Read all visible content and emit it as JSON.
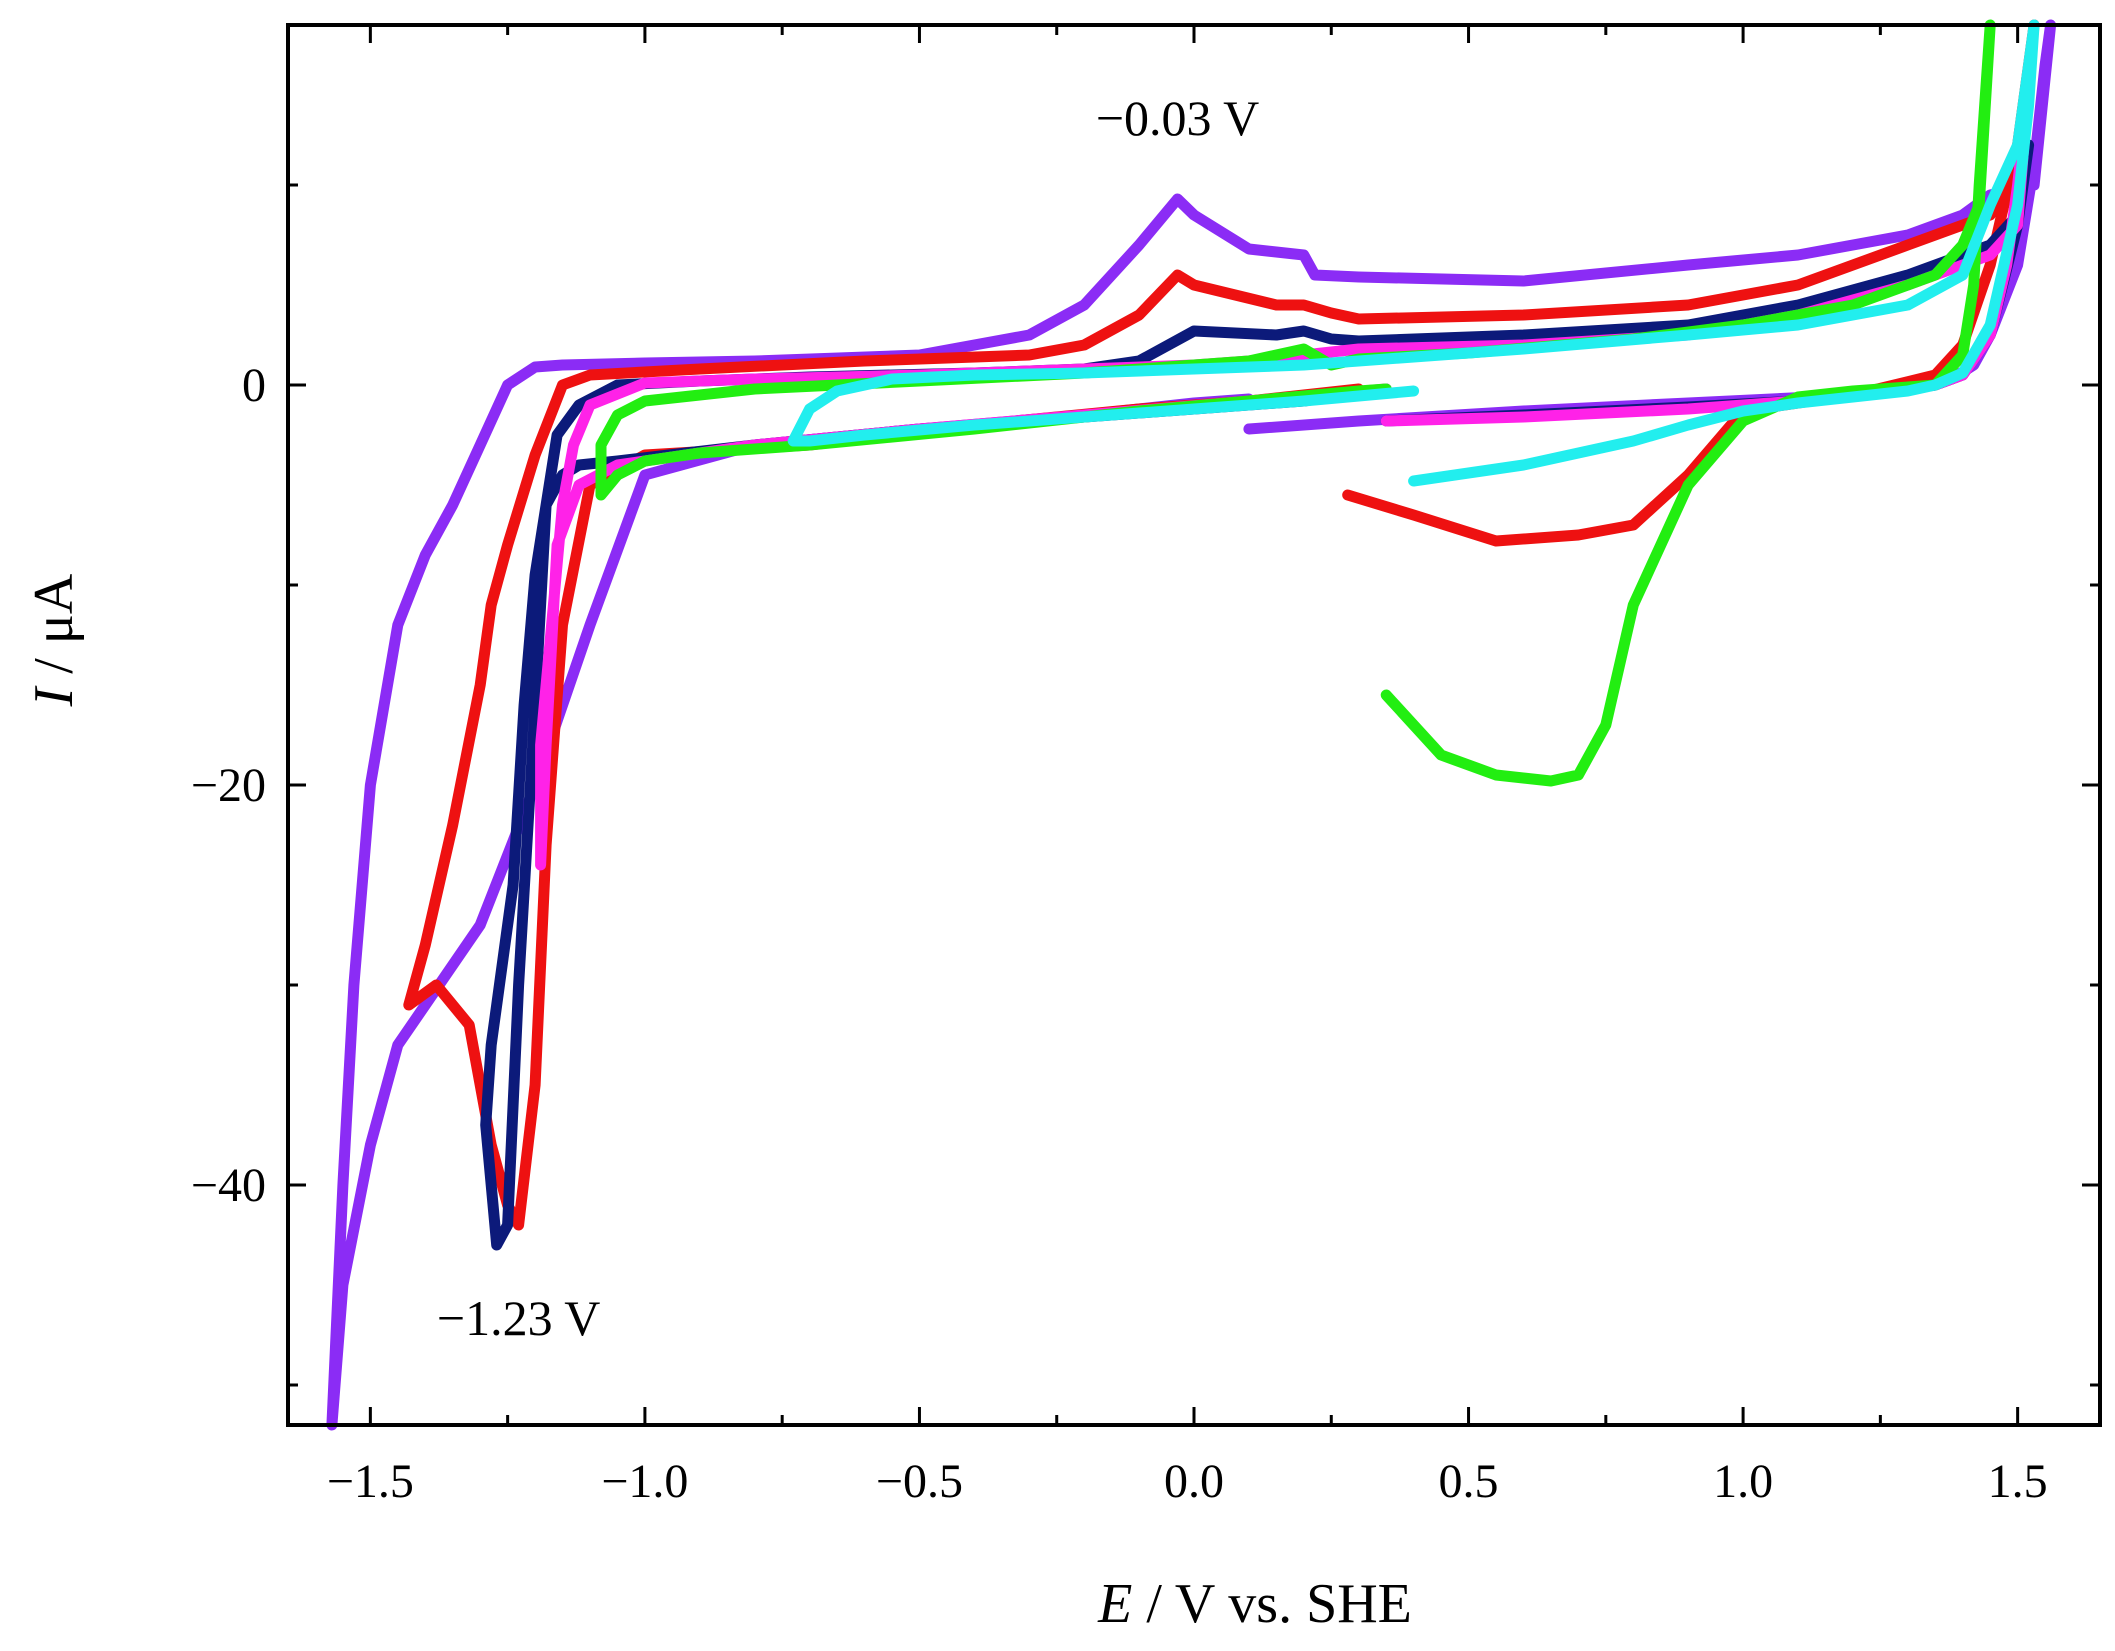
{
  "chart_data": {
    "type": "line",
    "title": "",
    "xlabel": {
      "italic": "E",
      "rest": " / V vs. SHE"
    },
    "ylabel": {
      "italic": "I",
      "rest": " / μA"
    },
    "xlim": [
      -1.65,
      1.65
    ],
    "ylim": [
      -52,
      18
    ],
    "xticks": [
      -1.5,
      -1.0,
      -0.5,
      0.0,
      0.5,
      1.0,
      1.5
    ],
    "xtick_labels": [
      "−1.5",
      "−1.0",
      "−0.5",
      "0.0",
      "0.5",
      "1.0",
      "1.5"
    ],
    "yticks": [
      -40,
      -20,
      0
    ],
    "ytick_labels": [
      "−40",
      "−20",
      "0"
    ],
    "grid": false,
    "annotations": [
      {
        "text": "−0.03 V",
        "x": -0.03,
        "y": 12.5
      },
      {
        "text": "−1.23 V",
        "x": -1.23,
        "y": -47.5
      }
    ],
    "series": [
      {
        "name": "violet",
        "color": "#8b2cf5",
        "x": [
          0.1,
          0.3,
          0.6,
          0.9,
          1.2,
          1.35,
          1.38,
          1.42,
          1.45,
          1.5,
          1.53,
          1.55,
          1.56,
          1.53,
          1.45,
          1.4,
          1.3,
          1.1,
          0.9,
          0.6,
          0.3,
          0.22,
          0.2,
          0.1,
          0.0,
          -0.03,
          -0.1,
          -0.2,
          -0.3,
          -0.5,
          -0.8,
          -1.0,
          -1.15,
          -1.2,
          -1.25,
          -1.3,
          -1.35,
          -1.4,
          -1.45,
          -1.5,
          -1.53,
          -1.55,
          -1.57,
          -1.55,
          -1.5,
          -1.45,
          -1.4,
          -1.3,
          -1.2,
          -1.1,
          -1.0,
          -0.8,
          -0.5,
          -0.2,
          0.0,
          0.1
        ],
        "y": [
          -2.2,
          -1.8,
          -1.3,
          -0.9,
          -0.5,
          0.0,
          0.3,
          1.0,
          2.5,
          6.0,
          11.0,
          16.0,
          18.0,
          10.0,
          9.5,
          8.5,
          7.5,
          6.5,
          6.0,
          5.2,
          5.4,
          5.5,
          6.5,
          6.8,
          8.5,
          9.3,
          7.0,
          4.0,
          2.5,
          1.5,
          1.2,
          1.1,
          1.0,
          0.9,
          0.0,
          -3.0,
          -6.0,
          -8.5,
          -12.0,
          -20.0,
          -30.0,
          -40.0,
          -52.0,
          -45.0,
          -38.0,
          -33.0,
          -31.0,
          -27.0,
          -20.0,
          -12.0,
          -4.5,
          -3.0,
          -2.2,
          -1.5,
          -0.9,
          -0.7
        ]
      },
      {
        "name": "red",
        "color": "#ee1111",
        "x": [
          0.28,
          0.4,
          0.55,
          0.7,
          0.8,
          0.9,
          1.0,
          1.2,
          1.35,
          1.4,
          1.45,
          1.5,
          1.52,
          1.53,
          1.5,
          1.45,
          1.3,
          1.1,
          0.9,
          0.6,
          0.3,
          0.25,
          0.2,
          0.15,
          0.0,
          -0.03,
          -0.1,
          -0.2,
          -0.3,
          -0.6,
          -0.9,
          -1.1,
          -1.15,
          -1.2,
          -1.25,
          -1.28,
          -1.3,
          -1.35,
          -1.4,
          -1.43,
          -1.43,
          -1.38,
          -1.32,
          -1.28,
          -1.25,
          -1.23,
          -1.2,
          -1.18,
          -1.15,
          -1.1,
          -1.0,
          -0.7,
          -0.4,
          -0.1,
          0.1,
          0.3
        ],
        "y": [
          -5.5,
          -6.5,
          -7.8,
          -7.5,
          -7.0,
          -4.5,
          -1.3,
          -0.5,
          0.5,
          2.0,
          6.0,
          12.0,
          16.0,
          18.0,
          10.5,
          8.5,
          7.0,
          5.0,
          4.0,
          3.5,
          3.3,
          3.6,
          4.0,
          4.0,
          5.0,
          5.5,
          3.5,
          2.0,
          1.5,
          1.2,
          0.8,
          0.5,
          0.0,
          -3.5,
          -8.0,
          -11.0,
          -15.0,
          -22.0,
          -28.0,
          -31.0,
          -31.0,
          -30.0,
          -32.0,
          -38.0,
          -41.0,
          -42.0,
          -35.0,
          -23.0,
          -12.0,
          -5.0,
          -3.5,
          -3.0,
          -2.0,
          -1.2,
          -0.8,
          -0.2
        ]
      },
      {
        "name": "navy",
        "color": "#0c1a7a",
        "x": [
          0.35,
          0.6,
          0.9,
          1.1,
          1.25,
          1.35,
          1.4,
          1.45,
          1.5,
          1.52,
          1.5,
          1.45,
          1.3,
          1.1,
          0.9,
          0.6,
          0.3,
          0.25,
          0.2,
          0.15,
          0.0,
          -0.1,
          -0.2,
          -0.4,
          -0.7,
          -0.9,
          -1.05,
          -1.12,
          -1.16,
          -1.18,
          -1.2,
          -1.23,
          -1.25,
          -1.27,
          -1.29,
          -1.28,
          -1.27,
          -1.24,
          -1.22,
          -1.2,
          -1.18,
          -1.15,
          -1.12,
          -1.05,
          -0.8,
          -0.5,
          -0.2,
          0.0,
          0.2,
          0.35
        ],
        "y": [
          -1.8,
          -1.5,
          -1.1,
          -0.8,
          -0.4,
          0.0,
          0.5,
          2.5,
          8.0,
          12.0,
          8.5,
          7.0,
          5.5,
          4.0,
          3.0,
          2.5,
          2.2,
          2.3,
          2.7,
          2.5,
          2.7,
          1.2,
          0.8,
          0.6,
          0.4,
          0.2,
          0.0,
          -1.0,
          -2.5,
          -6.0,
          -16.0,
          -30.0,
          -42.0,
          -43.0,
          -37.0,
          -33.0,
          -31.0,
          -25.0,
          -16.0,
          -9.5,
          -6.0,
          -4.5,
          -4.0,
          -3.8,
          -3.0,
          -2.2,
          -1.6,
          -1.2,
          -0.8,
          -0.2
        ]
      },
      {
        "name": "magenta",
        "color": "#ff22e8",
        "x": [
          0.35,
          0.6,
          0.9,
          1.1,
          1.25,
          1.35,
          1.4,
          1.45,
          1.48,
          1.5,
          1.52,
          1.5,
          1.45,
          1.3,
          1.1,
          0.9,
          0.6,
          0.3,
          0.2,
          0.1,
          0.0,
          -0.2,
          -0.5,
          -0.8,
          -1.0,
          -1.1,
          -1.13,
          -1.15,
          -1.17,
          -1.19,
          -1.19,
          -1.18,
          -1.16,
          -1.12,
          -1.05,
          -0.8,
          -0.5,
          -0.2,
          0.1,
          0.35
        ],
        "y": [
          -1.8,
          -1.6,
          -1.2,
          -0.8,
          -0.4,
          0.0,
          0.5,
          2.5,
          6.0,
          10.0,
          15.0,
          8.0,
          6.5,
          5.0,
          3.5,
          2.5,
          2.0,
          1.8,
          1.5,
          1.2,
          1.0,
          0.8,
          0.5,
          0.3,
          0.1,
          -1.0,
          -3.0,
          -6.0,
          -12.0,
          -18.0,
          -24.0,
          -18.0,
          -8.0,
          -5.0,
          -4.0,
          -3.0,
          -2.2,
          -1.5,
          -0.8,
          -0.2
        ]
      },
      {
        "name": "green",
        "color": "#22ee11",
        "x": [
          0.35,
          0.45,
          0.55,
          0.65,
          0.7,
          0.75,
          0.8,
          0.9,
          1.0,
          1.1,
          1.2,
          1.3,
          1.35,
          1.4,
          1.42,
          1.43,
          1.44,
          1.45,
          1.43,
          1.4,
          1.35,
          1.2,
          1.0,
          0.8,
          0.5,
          0.3,
          0.25,
          0.2,
          0.1,
          0.0,
          -0.2,
          -0.5,
          -0.8,
          -1.0,
          -1.05,
          -1.08,
          -1.08,
          -1.05,
          -1.0,
          -0.9,
          -0.7,
          -0.4,
          -0.1,
          0.1,
          0.3,
          0.35
        ],
        "y": [
          -15.5,
          -18.5,
          -19.5,
          -19.8,
          -19.5,
          -17.0,
          -11.0,
          -5.0,
          -1.8,
          -0.6,
          -0.3,
          -0.1,
          0.0,
          1.5,
          5.0,
          10.0,
          14.0,
          18.0,
          9.0,
          7.0,
          5.5,
          4.0,
          3.0,
          2.3,
          1.6,
          1.3,
          1.0,
          1.8,
          1.2,
          1.0,
          0.6,
          0.2,
          -0.2,
          -0.8,
          -1.5,
          -3.0,
          -5.5,
          -4.5,
          -3.8,
          -3.4,
          -3.0,
          -2.2,
          -1.3,
          -0.8,
          -0.3,
          -0.2
        ]
      },
      {
        "name": "cyan",
        "color": "#22eeee",
        "x": [
          0.4,
          0.6,
          0.8,
          0.9,
          1.0,
          1.1,
          1.2,
          1.3,
          1.35,
          1.4,
          1.45,
          1.5,
          1.52,
          1.53,
          1.5,
          1.45,
          1.4,
          1.3,
          1.1,
          0.9,
          0.6,
          0.3,
          0.2,
          0.0,
          -0.2,
          -0.4,
          -0.55,
          -0.65,
          -0.7,
          -0.73,
          -0.7,
          -0.6,
          -0.4,
          -0.2,
          0.0,
          0.2,
          0.4
        ],
        "y": [
          -4.8,
          -4.0,
          -2.8,
          -2.0,
          -1.3,
          -0.9,
          -0.6,
          -0.3,
          0.0,
          0.6,
          3.0,
          9.0,
          14.0,
          18.0,
          12.0,
          9.0,
          5.5,
          4.0,
          3.0,
          2.5,
          1.8,
          1.2,
          1.0,
          0.8,
          0.6,
          0.5,
          0.3,
          -0.3,
          -1.2,
          -2.8,
          -2.8,
          -2.5,
          -2.0,
          -1.6,
          -1.2,
          -0.8,
          -0.3
        ]
      }
    ]
  }
}
